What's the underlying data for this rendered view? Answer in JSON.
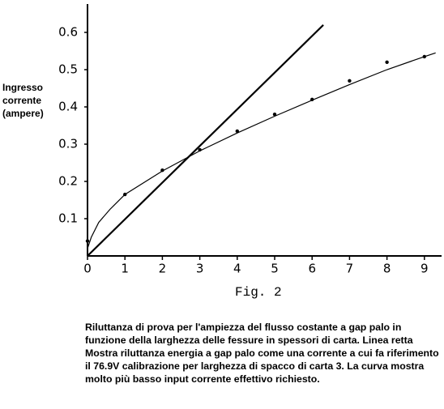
{
  "chart_data": {
    "type": "scatter",
    "ylabel": "Ingresso corrente (ampere)",
    "figure_label": "Fig. 2",
    "caption": "Riluttanza di prova per l'ampiezza del flusso costante a gap palo in funzione della larghezza delle fessure in spessori di carta. Linea retta Mostra riluttanza energia a gap palo come una corrente a cui fa riferimento il 76.9V calibrazione per larghezza di spacco di carta 3. La curva mostra molto più basso input corrente effettivo richiesto.",
    "xlim": [
      0,
      9.4
    ],
    "ylim": [
      0,
      0.68
    ],
    "xticks": [
      0,
      1,
      2,
      3,
      4,
      5,
      6,
      7,
      8,
      9
    ],
    "yticks": [
      0.1,
      0.2,
      0.3,
      0.4,
      0.5,
      0.6
    ],
    "series": [
      {
        "style": "points",
        "color": "#000000",
        "x": [
          0,
          1,
          2,
          3,
          4,
          5,
          6,
          7,
          8,
          9
        ],
        "values": [
          0.04,
          0.165,
          0.23,
          0.285,
          0.335,
          0.38,
          0.42,
          0.47,
          0.52,
          0.535
        ]
      },
      {
        "style": "line",
        "color": "#000000",
        "x": [
          0,
          6.3
        ],
        "values": [
          0,
          0.62
        ]
      },
      {
        "style": "curve",
        "color": "#000000",
        "x": [
          0,
          0.1,
          0.3,
          0.6,
          1,
          2,
          3,
          4,
          5,
          6,
          7,
          8,
          9,
          9.3
        ],
        "values": [
          0.02,
          0.05,
          0.09,
          0.125,
          0.165,
          0.228,
          0.282,
          0.33,
          0.375,
          0.418,
          0.46,
          0.5,
          0.535,
          0.545
        ]
      }
    ]
  }
}
